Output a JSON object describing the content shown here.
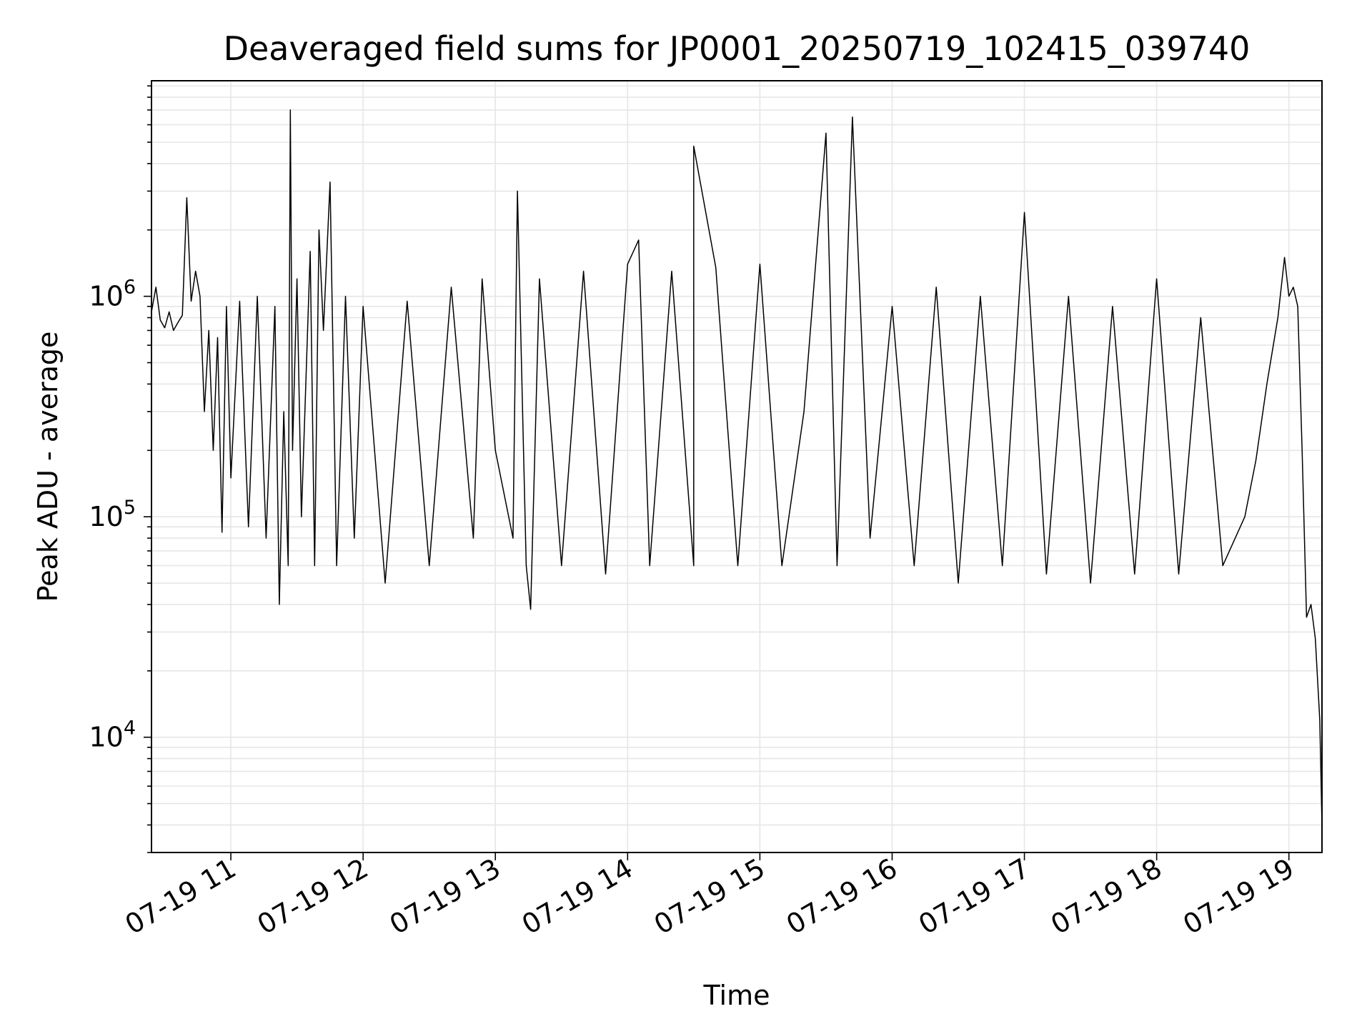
{
  "chart_data": {
    "type": "line",
    "title": "Deaveraged field sums for JP0001_20250719_102415_039740",
    "xlabel": "Time",
    "ylabel": "Peak ADU - average",
    "yscale": "log",
    "grid": true,
    "line_color": "#000000",
    "grid_color": "#e6e6e6",
    "xlim": [
      "2025-07-19 10:24",
      "2025-07-19 19:15"
    ],
    "ylim": [
      3000,
      9500000
    ],
    "x_ticks": [
      {
        "value": "2025-07-19 11:00",
        "label": "07-19 11"
      },
      {
        "value": "2025-07-19 12:00",
        "label": "07-19 12"
      },
      {
        "value": "2025-07-19 13:00",
        "label": "07-19 13"
      },
      {
        "value": "2025-07-19 14:00",
        "label": "07-19 14"
      },
      {
        "value": "2025-07-19 15:00",
        "label": "07-19 15"
      },
      {
        "value": "2025-07-19 16:00",
        "label": "07-19 16"
      },
      {
        "value": "2025-07-19 17:00",
        "label": "07-19 17"
      },
      {
        "value": "2025-07-19 18:00",
        "label": "07-19 18"
      },
      {
        "value": "2025-07-19 19:00",
        "label": "07-19 19"
      }
    ],
    "y_ticks": [
      {
        "value": 10000,
        "base": "10",
        "exp": "4"
      },
      {
        "value": 100000,
        "base": "10",
        "exp": "5"
      },
      {
        "value": 1000000,
        "base": "10",
        "exp": "6"
      }
    ],
    "series": [
      {
        "points": [
          [
            "2025-07-19 10:24",
            850000
          ],
          [
            "2025-07-19 10:26",
            1100000
          ],
          [
            "2025-07-19 10:28",
            780000
          ],
          [
            "2025-07-19 10:30",
            720000
          ],
          [
            "2025-07-19 10:32",
            850000
          ],
          [
            "2025-07-19 10:34",
            700000
          ],
          [
            "2025-07-19 10:36",
            760000
          ],
          [
            "2025-07-19 10:38",
            820000
          ],
          [
            "2025-07-19 10:40",
            2800000
          ],
          [
            "2025-07-19 10:42",
            950000
          ],
          [
            "2025-07-19 10:44",
            1300000
          ],
          [
            "2025-07-19 10:46",
            1000000
          ],
          [
            "2025-07-19 10:48",
            300000
          ],
          [
            "2025-07-19 10:50",
            700000
          ],
          [
            "2025-07-19 10:52",
            200000
          ],
          [
            "2025-07-19 10:54",
            650000
          ],
          [
            "2025-07-19 10:56",
            85000
          ],
          [
            "2025-07-19 10:58",
            900000
          ],
          [
            "2025-07-19 11:00",
            150000
          ],
          [
            "2025-07-19 11:04",
            950000
          ],
          [
            "2025-07-19 11:08",
            90000
          ],
          [
            "2025-07-19 11:12",
            1000000
          ],
          [
            "2025-07-19 11:16",
            80000
          ],
          [
            "2025-07-19 11:20",
            900000
          ],
          [
            "2025-07-19 11:22",
            40000
          ],
          [
            "2025-07-19 11:24",
            300000
          ],
          [
            "2025-07-19 11:26",
            60000
          ],
          [
            "2025-07-19 11:27",
            7000000
          ],
          [
            "2025-07-19 11:28",
            200000
          ],
          [
            "2025-07-19 11:30",
            1200000
          ],
          [
            "2025-07-19 11:32",
            100000
          ],
          [
            "2025-07-19 11:36",
            1600000
          ],
          [
            "2025-07-19 11:38",
            60000
          ],
          [
            "2025-07-19 11:40",
            2000000
          ],
          [
            "2025-07-19 11:42",
            700000
          ],
          [
            "2025-07-19 11:45",
            3300000
          ],
          [
            "2025-07-19 11:48",
            60000
          ],
          [
            "2025-07-19 11:52",
            1000000
          ],
          [
            "2025-07-19 11:56",
            80000
          ],
          [
            "2025-07-19 12:00",
            900000
          ],
          [
            "2025-07-19 12:10",
            50000
          ],
          [
            "2025-07-19 12:20",
            950000
          ],
          [
            "2025-07-19 12:30",
            60000
          ],
          [
            "2025-07-19 12:40",
            1100000
          ],
          [
            "2025-07-19 12:50",
            80000
          ],
          [
            "2025-07-19 12:54",
            1200000
          ],
          [
            "2025-07-19 13:00",
            200000
          ],
          [
            "2025-07-19 13:08",
            80000
          ],
          [
            "2025-07-19 13:10",
            3000000
          ],
          [
            "2025-07-19 13:14",
            60000
          ],
          [
            "2025-07-19 13:16",
            38000
          ],
          [
            "2025-07-19 13:20",
            1200000
          ],
          [
            "2025-07-19 13:30",
            60000
          ],
          [
            "2025-07-19 13:40",
            1300000
          ],
          [
            "2025-07-19 13:50",
            55000
          ],
          [
            "2025-07-19 14:00",
            1400000
          ],
          [
            "2025-07-19 14:05",
            1800000
          ],
          [
            "2025-07-19 14:10",
            60000
          ],
          [
            "2025-07-19 14:20",
            1300000
          ],
          [
            "2025-07-19 14:30",
            60000
          ],
          [
            "2025-07-19 14:30",
            4800000
          ],
          [
            "2025-07-19 14:40",
            1350000
          ],
          [
            "2025-07-19 14:50",
            60000
          ],
          [
            "2025-07-19 15:00",
            1400000
          ],
          [
            "2025-07-19 15:10",
            60000
          ],
          [
            "2025-07-19 15:20",
            300000
          ],
          [
            "2025-07-19 15:30",
            5500000
          ],
          [
            "2025-07-19 15:35",
            60000
          ],
          [
            "2025-07-19 15:42",
            6500000
          ],
          [
            "2025-07-19 15:50",
            80000
          ],
          [
            "2025-07-19 16:00",
            900000
          ],
          [
            "2025-07-19 16:10",
            60000
          ],
          [
            "2025-07-19 16:20",
            1100000
          ],
          [
            "2025-07-19 16:30",
            50000
          ],
          [
            "2025-07-19 16:40",
            1000000
          ],
          [
            "2025-07-19 16:50",
            60000
          ],
          [
            "2025-07-19 17:00",
            2400000
          ],
          [
            "2025-07-19 17:10",
            55000
          ],
          [
            "2025-07-19 17:20",
            1000000
          ],
          [
            "2025-07-19 17:30",
            50000
          ],
          [
            "2025-07-19 17:40",
            900000
          ],
          [
            "2025-07-19 17:50",
            55000
          ],
          [
            "2025-07-19 18:00",
            1200000
          ],
          [
            "2025-07-19 18:10",
            55000
          ],
          [
            "2025-07-19 18:20",
            800000
          ],
          [
            "2025-07-19 18:30",
            60000
          ],
          [
            "2025-07-19 18:40",
            100000
          ],
          [
            "2025-07-19 18:45",
            180000
          ],
          [
            "2025-07-19 18:50",
            400000
          ],
          [
            "2025-07-19 18:55",
            800000
          ],
          [
            "2025-07-19 18:58",
            1500000
          ],
          [
            "2025-07-19 19:00",
            1000000
          ],
          [
            "2025-07-19 19:02",
            1100000
          ],
          [
            "2025-07-19 19:04",
            900000
          ],
          [
            "2025-07-19 19:06",
            200000
          ],
          [
            "2025-07-19 19:08",
            35000
          ],
          [
            "2025-07-19 19:10",
            40000
          ],
          [
            "2025-07-19 19:12",
            28000
          ],
          [
            "2025-07-19 19:14",
            12000
          ],
          [
            "2025-07-19 19:15",
            4000
          ]
        ]
      }
    ]
  }
}
